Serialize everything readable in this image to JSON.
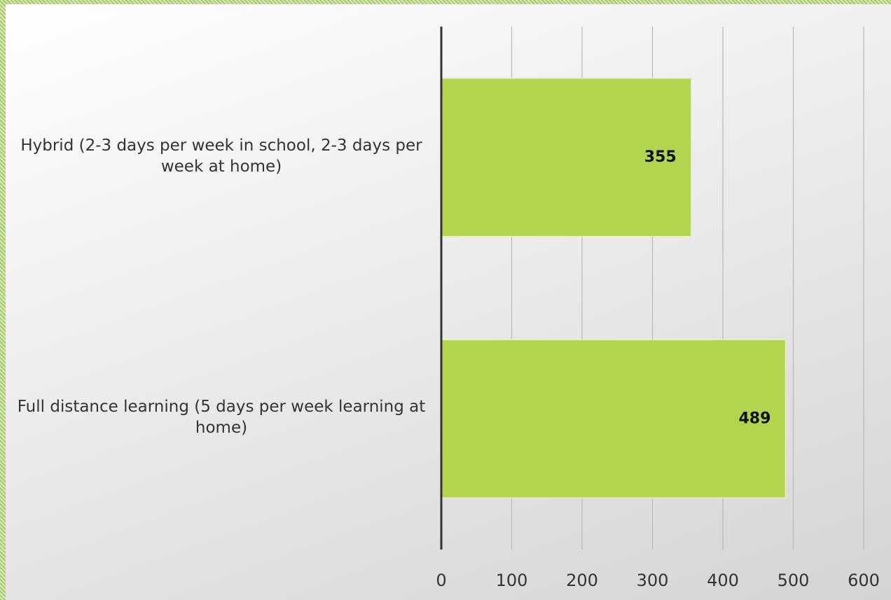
{
  "chart_data": {
    "type": "bar",
    "orientation": "horizontal",
    "categories": [
      "Hybrid (2-3 days per week in school, 2-3 days per week at home)",
      "Full distance learning (5 days per week learning at home)"
    ],
    "values": [
      355,
      489
    ],
    "color": "#b1d54f",
    "xlim": [
      0,
      600
    ],
    "xticks": [
      0,
      100,
      200,
      300,
      400,
      500,
      600
    ],
    "grid": true
  }
}
